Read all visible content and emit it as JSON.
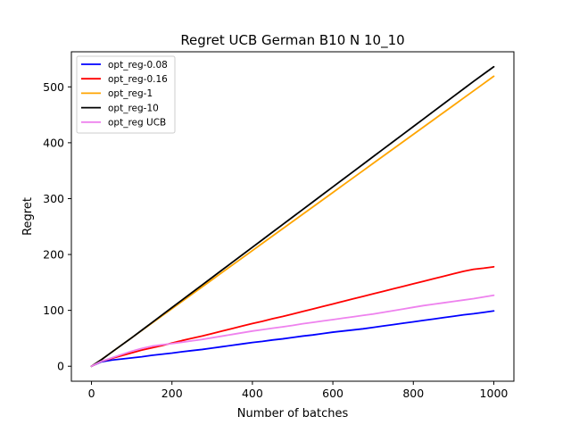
{
  "chart_data": {
    "type": "line",
    "title": "Regret UCB German B10 N 10_10",
    "xlabel": "Number of batches",
    "ylabel": "Regret",
    "xlim": [
      -50,
      1050
    ],
    "ylim": [
      -26.8,
      562.8
    ],
    "x_ticks": [
      0,
      200,
      400,
      600,
      800,
      1000
    ],
    "y_ticks": [
      0,
      100,
      200,
      300,
      400,
      500
    ],
    "grid": false,
    "legend_position": "top-left",
    "x": [
      0,
      25,
      50,
      75,
      100,
      125,
      150,
      175,
      200,
      225,
      250,
      275,
      300,
      325,
      350,
      375,
      400,
      425,
      450,
      475,
      500,
      525,
      550,
      575,
      600,
      625,
      650,
      675,
      700,
      725,
      750,
      775,
      800,
      825,
      850,
      875,
      900,
      925,
      950,
      975,
      1000
    ],
    "series": [
      {
        "name": "opt_reg-0.08",
        "color": "#0000ff",
        "values": [
          0,
          8,
          11,
          13,
          15,
          17,
          19.5,
          21.5,
          23.5,
          26,
          28,
          30,
          32.5,
          35,
          37.5,
          40,
          42.5,
          44.5,
          47,
          49,
          51.5,
          54,
          56,
          58.5,
          61,
          63,
          65,
          67,
          69.5,
          72,
          74.5,
          77,
          79.5,
          82,
          84.5,
          87,
          89.5,
          92,
          94,
          96.5,
          99
        ]
      },
      {
        "name": "opt_reg-0.16",
        "color": "#ff0000",
        "values": [
          0,
          9,
          14,
          19,
          24,
          29,
          33,
          37,
          41.5,
          46,
          50,
          54,
          58.5,
          63,
          67.5,
          72,
          76.5,
          80.5,
          85,
          89,
          93.5,
          98,
          102.5,
          107,
          111.5,
          116,
          120.5,
          125,
          129.5,
          134,
          138.5,
          143,
          147.5,
          152,
          156.5,
          161,
          165.5,
          170,
          173.5,
          175.5,
          178
        ]
      },
      {
        "name": "opt_reg-1",
        "color": "#ffa500",
        "values": [
          0,
          12,
          25,
          38,
          51,
          64,
          77,
          90,
          103,
          116,
          129,
          142,
          155,
          168,
          181,
          194,
          207,
          220,
          233,
          246,
          259,
          272,
          285,
          298,
          311,
          324,
          337,
          350,
          363,
          376,
          389,
          402,
          415,
          428,
          441,
          454,
          467,
          480,
          493,
          506,
          519
        ]
      },
      {
        "name": "opt_reg-10",
        "color": "#000000",
        "values": [
          0,
          12,
          25,
          38,
          51,
          64.5,
          78,
          91.5,
          105,
          118.5,
          132,
          145.5,
          159,
          172.5,
          186,
          199.5,
          213,
          226.5,
          240,
          253.5,
          267,
          280.5,
          294,
          307.5,
          321,
          334.5,
          348,
          361.5,
          375,
          388.5,
          402,
          415.5,
          429,
          442.5,
          456,
          469.5,
          483,
          496.5,
          510,
          523,
          536
        ]
      },
      {
        "name": "opt_reg UCB",
        "color": "#ee82ee",
        "values": [
          0,
          9,
          15,
          21,
          27,
          32,
          36,
          38.5,
          40.5,
          43,
          45.5,
          48,
          51,
          54,
          57,
          60,
          63,
          65.5,
          68,
          70.5,
          73,
          76,
          78.5,
          81,
          83.5,
          86,
          88.5,
          91,
          93.5,
          96.5,
          99.5,
          102.5,
          105.5,
          108.5,
          111,
          113.5,
          116,
          118.5,
          121,
          124,
          127
        ]
      }
    ]
  }
}
